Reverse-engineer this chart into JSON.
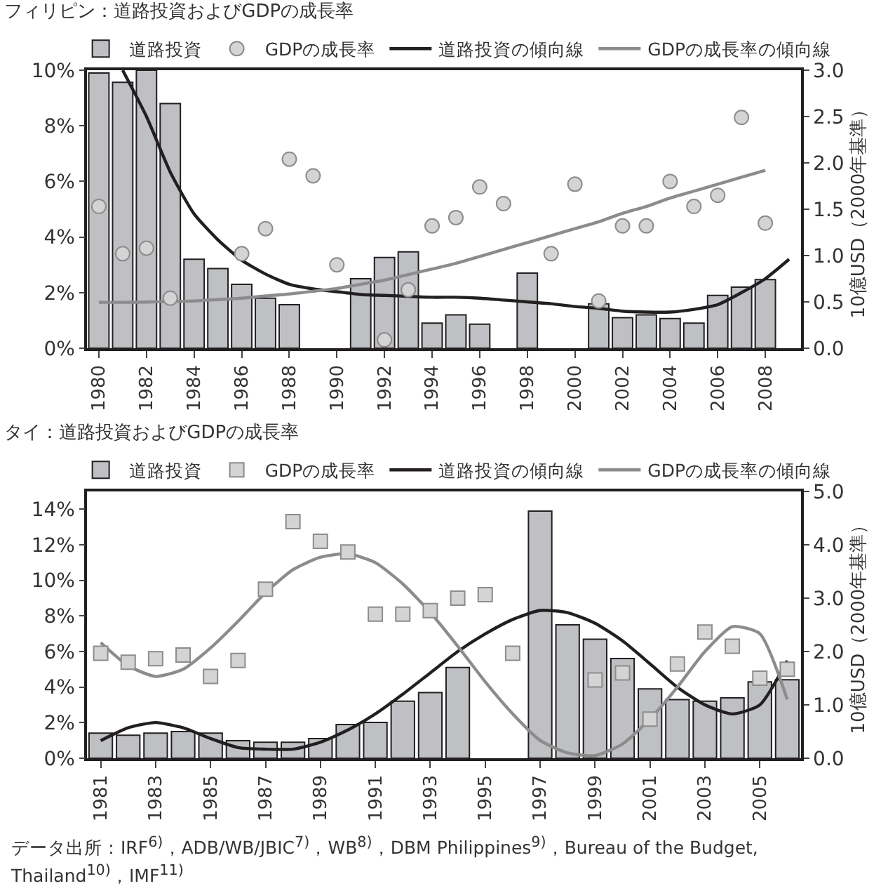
{
  "chart_data": [
    {
      "type": "bar",
      "title": "フィリピン：道路投資およびGDPの成長率",
      "y2label": "10億USD（2000年基準）",
      "categories": [
        "1980",
        null,
        "1982",
        null,
        "1984",
        null,
        "1986",
        null,
        "1988",
        null,
        "1990",
        null,
        "1992",
        null,
        "1994",
        null,
        "1996",
        null,
        "1998",
        null,
        "2000",
        null,
        "2002",
        null,
        "2004",
        null,
        "2006",
        null,
        "2008",
        null
      ],
      "series": [
        {
          "name": "道路投資",
          "axis": "y2",
          "color": "#bfc0c4",
          "values": [
            2.97,
            2.87,
            3.0,
            2.64,
            0.96,
            0.86,
            0.69,
            0.54,
            0.47,
            null,
            null,
            0.75,
            0.98,
            1.04,
            0.27,
            0.36,
            0.26,
            null,
            0.81,
            null,
            null,
            0.48,
            0.33,
            0.36,
            0.32,
            0.27,
            0.57,
            0.66,
            0.74,
            null
          ]
        },
        {
          "name": "GDPの成長率",
          "type": "scatter",
          "marker": "circle",
          "color": "#d4d4d4",
          "values": [
            5.1,
            3.4,
            3.6,
            1.8,
            null,
            null,
            3.4,
            4.3,
            6.8,
            6.2,
            3.0,
            null,
            0.3,
            2.1,
            4.4,
            4.7,
            5.8,
            5.2,
            null,
            3.4,
            5.9,
            1.7,
            4.4,
            4.4,
            6.0,
            5.1,
            5.5,
            8.3,
            4.5,
            null
          ]
        },
        {
          "name": "道路投資の傾向線",
          "type": "line",
          "axis": "y2",
          "color": "#231f20",
          "values": [
            null,
            3.0,
            2.5,
            1.9,
            1.45,
            1.17,
            0.95,
            0.8,
            0.69,
            0.64,
            0.61,
            0.58,
            0.57,
            0.56,
            0.55,
            0.55,
            0.54,
            0.52,
            0.5,
            0.48,
            0.45,
            0.43,
            0.4,
            0.39,
            0.39,
            0.42,
            0.47,
            0.6,
            0.75,
            0.96
          ]
        },
        {
          "name": "GDPの成長率の傾向線",
          "type": "line",
          "color": "#8c8c8c",
          "values": [
            1.65,
            1.65,
            1.66,
            1.68,
            1.7,
            1.75,
            1.8,
            1.88,
            1.95,
            2.05,
            2.15,
            2.3,
            2.45,
            2.65,
            2.85,
            3.05,
            3.3,
            3.55,
            3.8,
            4.05,
            4.3,
            4.55,
            4.85,
            5.1,
            5.4,
            5.65,
            5.9,
            6.15,
            6.4,
            null
          ]
        }
      ],
      "ylim": [
        0,
        10
      ],
      "yticks": [
        {
          "value": 0,
          "label": "0%"
        },
        {
          "value": 2,
          "label": "2%"
        },
        {
          "value": 4,
          "label": "4%"
        },
        {
          "value": 6,
          "label": "6%"
        },
        {
          "value": 8,
          "label": "8%"
        },
        {
          "value": 10,
          "label": "10%"
        }
      ],
      "y2lim": [
        0,
        3
      ],
      "y2ticks": [
        {
          "value": 0,
          "label": "0.0"
        },
        {
          "value": 0.5,
          "label": "0.5"
        },
        {
          "value": 1,
          "label": "1.0"
        },
        {
          "value": 1.5,
          "label": "1.5"
        },
        {
          "value": 2,
          "label": "2.0"
        },
        {
          "value": 2.5,
          "label": "2.5"
        },
        {
          "value": 3,
          "label": "3.0"
        }
      ],
      "legend": "top",
      "grid": false
    },
    {
      "type": "bar",
      "title": "タイ：道路投資およびGDPの成長率",
      "y2label": "10億USD（2000年基準）",
      "categories": [
        "1981",
        null,
        "1983",
        null,
        "1985",
        null,
        "1987",
        null,
        "1989",
        null,
        "1991",
        null,
        "1993",
        null,
        "1995",
        null,
        "1997",
        null,
        "1999",
        null,
        "2001",
        null,
        "2003",
        null,
        "2005",
        null
      ],
      "series": [
        {
          "name": "道路投資",
          "axis": "y2",
          "color": "#bfc0c4",
          "values": [
            0.47,
            0.43,
            0.47,
            0.5,
            0.47,
            0.33,
            0.3,
            0.3,
            0.37,
            0.63,
            0.67,
            1.07,
            1.23,
            1.7,
            null,
            null,
            4.63,
            2.5,
            2.23,
            1.87,
            1.3,
            1.1,
            1.07,
            1.13,
            1.43,
            1.47
          ]
        },
        {
          "name": "GDPの成長率",
          "type": "scatter",
          "marker": "square",
          "color": "#d4d4d4",
          "values": [
            5.9,
            5.4,
            5.6,
            5.8,
            4.6,
            5.5,
            9.5,
            13.3,
            12.2,
            11.6,
            8.1,
            8.1,
            8.3,
            9.0,
            9.2,
            5.9,
            null,
            null,
            4.4,
            4.8,
            2.2,
            5.3,
            7.1,
            6.3,
            4.5,
            5.0
          ]
        },
        {
          "name": "道路投資の傾向線",
          "type": "line",
          "axis": "y2",
          "color": "#231f20",
          "values": [
            0.33,
            0.57,
            0.67,
            0.57,
            0.37,
            0.2,
            0.17,
            0.17,
            0.3,
            0.53,
            0.83,
            1.2,
            1.6,
            2.0,
            2.33,
            2.6,
            2.77,
            2.73,
            2.53,
            2.2,
            1.77,
            1.33,
            1.0,
            0.83,
            1.0,
            1.83
          ]
        },
        {
          "name": "GDPの成長率の傾向線",
          "type": "line",
          "color": "#8c8c8c",
          "values": [
            6.5,
            5.2,
            4.6,
            5.0,
            6.2,
            7.7,
            9.3,
            10.6,
            11.3,
            11.5,
            11.0,
            9.8,
            8.2,
            6.3,
            4.3,
            2.5,
            1.0,
            0.3,
            0.15,
            0.8,
            2.2,
            4.0,
            6.0,
            7.4,
            7.0,
            3.3
          ]
        }
      ],
      "ylim": [
        0,
        15
      ],
      "yticks": [
        {
          "value": 0,
          "label": "0%"
        },
        {
          "value": 2,
          "label": "2%"
        },
        {
          "value": 4,
          "label": "4%"
        },
        {
          "value": 6,
          "label": "6%"
        },
        {
          "value": 8,
          "label": "8%"
        },
        {
          "value": 10,
          "label": "10%"
        },
        {
          "value": 12,
          "label": "12%"
        },
        {
          "value": 14,
          "label": "14%"
        }
      ],
      "y2lim": [
        0,
        5
      ],
      "y2ticks": [
        {
          "value": 0,
          "label": "0.0"
        },
        {
          "value": 1,
          "label": "1.0"
        },
        {
          "value": 2,
          "label": "2.0"
        },
        {
          "value": 3,
          "label": "3.0"
        },
        {
          "value": 4,
          "label": "4.0"
        },
        {
          "value": 5,
          "label": "5.0"
        }
      ],
      "legend": "top",
      "grid": false,
      "annotations": [
        "データ出所：IRF$^{6)}$，ADB/WB/JBIC$^{7)}$，WB$^{8)}$，DBM Philippines$^{9)}$，Bureau of the Budget, Thailand$^{10)}$，IMF$^{11)}$"
      ]
    }
  ]
}
